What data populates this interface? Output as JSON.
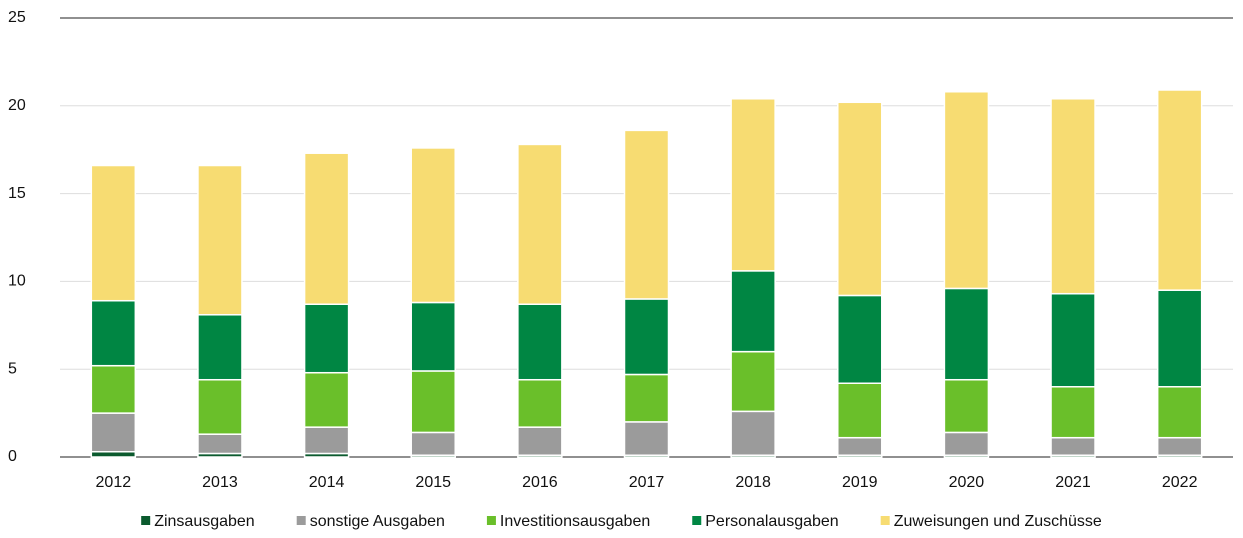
{
  "chart_data": {
    "type": "stacked_bar",
    "categories": [
      "2012",
      "2013",
      "2014",
      "2015",
      "2016",
      "2017",
      "2018",
      "2019",
      "2020",
      "2021",
      "2022"
    ],
    "series": [
      {
        "name": "Zinsausgaben",
        "color": "#0b5a2e",
        "values": [
          0.3,
          0.2,
          0.2,
          0.1,
          0.1,
          0.1,
          0.1,
          0.1,
          0.1,
          0.1,
          0.1
        ]
      },
      {
        "name": "sonstige Ausgaben",
        "color": "#9b9b9b",
        "values": [
          2.2,
          1.1,
          1.5,
          1.3,
          1.6,
          1.9,
          2.5,
          1.0,
          1.3,
          1.0,
          1.0
        ]
      },
      {
        "name": "Investitionsausgaben",
        "color": "#6abf2a",
        "values": [
          2.7,
          3.1,
          3.1,
          3.5,
          2.7,
          2.7,
          3.4,
          3.1,
          3.0,
          2.9,
          2.9
        ]
      },
      {
        "name": "Personalausgaben",
        "color": "#008643",
        "values": [
          3.7,
          3.7,
          3.9,
          3.9,
          4.3,
          4.3,
          4.6,
          5.0,
          5.2,
          5.3,
          5.5
        ]
      },
      {
        "name": "Zuweisungen und Zuschüsse",
        "color": "#f7dc72",
        "values": [
          7.7,
          8.5,
          8.6,
          8.8,
          9.1,
          9.6,
          9.8,
          11.0,
          11.2,
          11.1,
          11.4
        ]
      }
    ],
    "ylim": [
      0,
      25
    ],
    "yticks": [
      0,
      5,
      10,
      15,
      20,
      25
    ],
    "grid": true,
    "legend": "bottom"
  }
}
